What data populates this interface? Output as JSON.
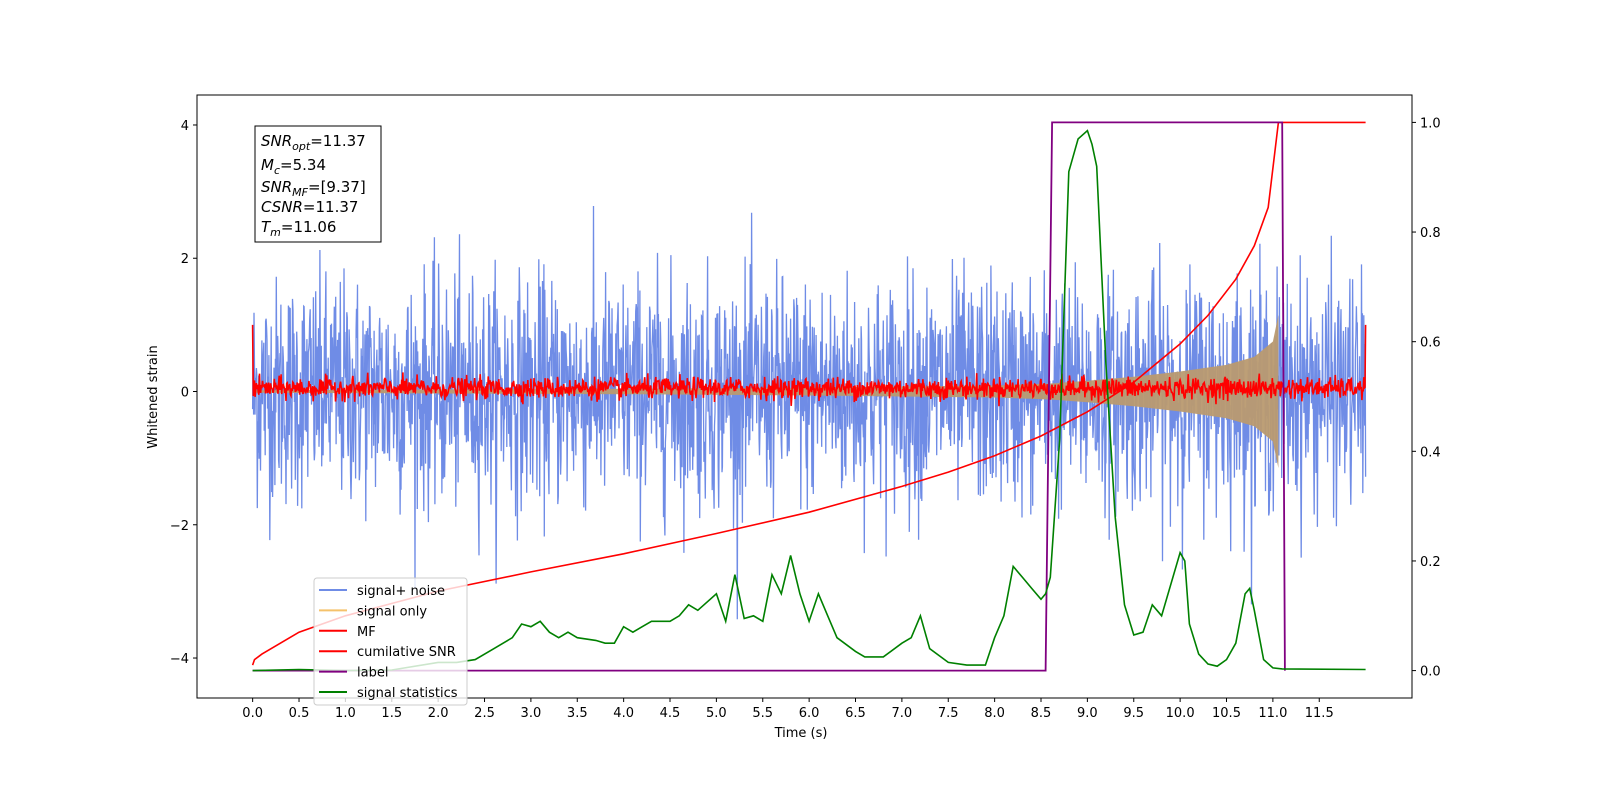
{
  "chart_data": {
    "type": "line",
    "xlabel": "Time (s)",
    "ylabel_left": "Whitened strain",
    "ylabel_right": "",
    "xlim": [
      -0.6,
      12.5
    ],
    "ylim_left": [
      -4.6,
      4.45
    ],
    "ylim_right": [
      -0.05,
      1.05
    ],
    "x_ticks": [
      "0.0",
      "0.5",
      "1.0",
      "1.5",
      "2.0",
      "2.5",
      "3.0",
      "3.5",
      "4.0",
      "4.5",
      "5.0",
      "5.5",
      "6.0",
      "6.5",
      "7.0",
      "7.5",
      "8.0",
      "8.5",
      "9.0",
      "9.5",
      "10.0",
      "10.5",
      "11.0",
      "11.5"
    ],
    "y_ticks_left": [
      "4",
      "2",
      "0",
      "−2",
      "−4"
    ],
    "y_ticks_right": [
      "1.0",
      "0.8",
      "0.6",
      "0.4",
      "0.2",
      "0.0"
    ],
    "grid": false,
    "legend_position": "lower-left",
    "info_box": {
      "snr_opt": {
        "main": "SNR",
        "sub": "opt",
        "value": "=11.37"
      },
      "mc": {
        "main": "M",
        "sub": "c",
        "value": "=5.34"
      },
      "snr_mf": {
        "main": "SNR",
        "sub": "MF",
        "value": "=[9.37]"
      },
      "csnr": {
        "main": "CSNR",
        "value": "=11.37"
      },
      "tm": {
        "main": "T",
        "sub": "m",
        "value": "=11.06"
      }
    },
    "series": [
      {
        "name": "signal+ noise",
        "color": "#6f8ce6",
        "axis": "left",
        "description_range": [
          -4.0,
          4.0
        ],
        "typical_envelope": [
          -1.8,
          2.0
        ],
        "x_range": [
          0.0,
          12.0
        ]
      },
      {
        "name": "signal only",
        "color": "#f5c26b",
        "axis": "left",
        "x_range": [
          0.0,
          11.1
        ],
        "envelope_x": [
          0,
          2,
          4,
          6,
          8,
          8.6,
          9,
          9.5,
          10,
          10.5,
          10.8,
          11.0,
          11.06
        ],
        "envelope_y": [
          0.02,
          0.03,
          0.04,
          0.06,
          0.09,
          0.12,
          0.16,
          0.22,
          0.3,
          0.4,
          0.52,
          0.75,
          1.15
        ]
      },
      {
        "name": "MF",
        "color": "#ff0000",
        "axis": "left",
        "x_range": [
          0.0,
          12.0
        ],
        "typical_envelope": [
          -0.15,
          0.3
        ]
      },
      {
        "name": "cumilative SNR",
        "color": "#ff0000",
        "axis": "right",
        "x": [
          0.0,
          0.02,
          0.1,
          0.5,
          1.0,
          2.0,
          3.0,
          4.0,
          5.0,
          6.0,
          7.0,
          7.5,
          8.0,
          8.5,
          9.0,
          9.5,
          10.0,
          10.3,
          10.6,
          10.8,
          10.95,
          11.06,
          12.0
        ],
        "values": [
          0.01,
          0.02,
          0.03,
          0.07,
          0.1,
          0.145,
          0.18,
          0.213,
          0.25,
          0.289,
          0.336,
          0.362,
          0.392,
          0.428,
          0.472,
          0.526,
          0.596,
          0.648,
          0.714,
          0.775,
          0.845,
          1.0,
          1.0
        ]
      },
      {
        "name": "label",
        "color": "#800080",
        "axis": "right",
        "x": [
          0.0,
          8.55,
          8.62,
          11.1,
          11.13
        ],
        "values": [
          0.0,
          0.0,
          1.0,
          1.0,
          0.0
        ]
      },
      {
        "name": "signal statistics",
        "color": "#008000",
        "axis": "right",
        "x": [
          0.0,
          0.5,
          1.0,
          1.5,
          2.0,
          2.2,
          2.4,
          2.6,
          2.8,
          2.9,
          3.0,
          3.1,
          3.2,
          3.3,
          3.4,
          3.5,
          3.7,
          3.8,
          3.9,
          4.0,
          4.1,
          4.2,
          4.3,
          4.4,
          4.5,
          4.6,
          4.7,
          4.8,
          5.0,
          5.1,
          5.2,
          5.3,
          5.4,
          5.5,
          5.6,
          5.7,
          5.8,
          5.9,
          6.0,
          6.1,
          6.2,
          6.3,
          6.5,
          6.6,
          6.8,
          7.0,
          7.1,
          7.2,
          7.3,
          7.5,
          7.7,
          7.9,
          8.0,
          8.1,
          8.2,
          8.3,
          8.4,
          8.5,
          8.55,
          8.6,
          8.7,
          8.8,
          8.9,
          9.0,
          9.05,
          9.1,
          9.2,
          9.3,
          9.4,
          9.5,
          9.6,
          9.7,
          9.8,
          10.0,
          10.05,
          10.1,
          10.2,
          10.3,
          10.4,
          10.5,
          10.6,
          10.7,
          10.75,
          10.8,
          10.9,
          11.0,
          11.1,
          12.0
        ],
        "values": [
          0.0,
          0.002,
          0.0,
          0.001,
          0.015,
          0.015,
          0.02,
          0.04,
          0.06,
          0.085,
          0.08,
          0.09,
          0.07,
          0.06,
          0.07,
          0.06,
          0.055,
          0.05,
          0.05,
          0.08,
          0.07,
          0.08,
          0.09,
          0.09,
          0.09,
          0.1,
          0.12,
          0.11,
          0.14,
          0.09,
          0.175,
          0.095,
          0.1,
          0.09,
          0.175,
          0.14,
          0.21,
          0.14,
          0.09,
          0.14,
          0.1,
          0.06,
          0.035,
          0.025,
          0.025,
          0.05,
          0.06,
          0.1,
          0.04,
          0.015,
          0.01,
          0.01,
          0.06,
          0.1,
          0.19,
          0.17,
          0.15,
          0.13,
          0.14,
          0.17,
          0.42,
          0.91,
          0.97,
          0.985,
          0.96,
          0.92,
          0.56,
          0.28,
          0.12,
          0.065,
          0.07,
          0.12,
          0.1,
          0.215,
          0.2,
          0.085,
          0.03,
          0.012,
          0.008,
          0.02,
          0.05,
          0.14,
          0.15,
          0.11,
          0.02,
          0.005,
          0.003,
          0.002
        ]
      }
    ]
  }
}
